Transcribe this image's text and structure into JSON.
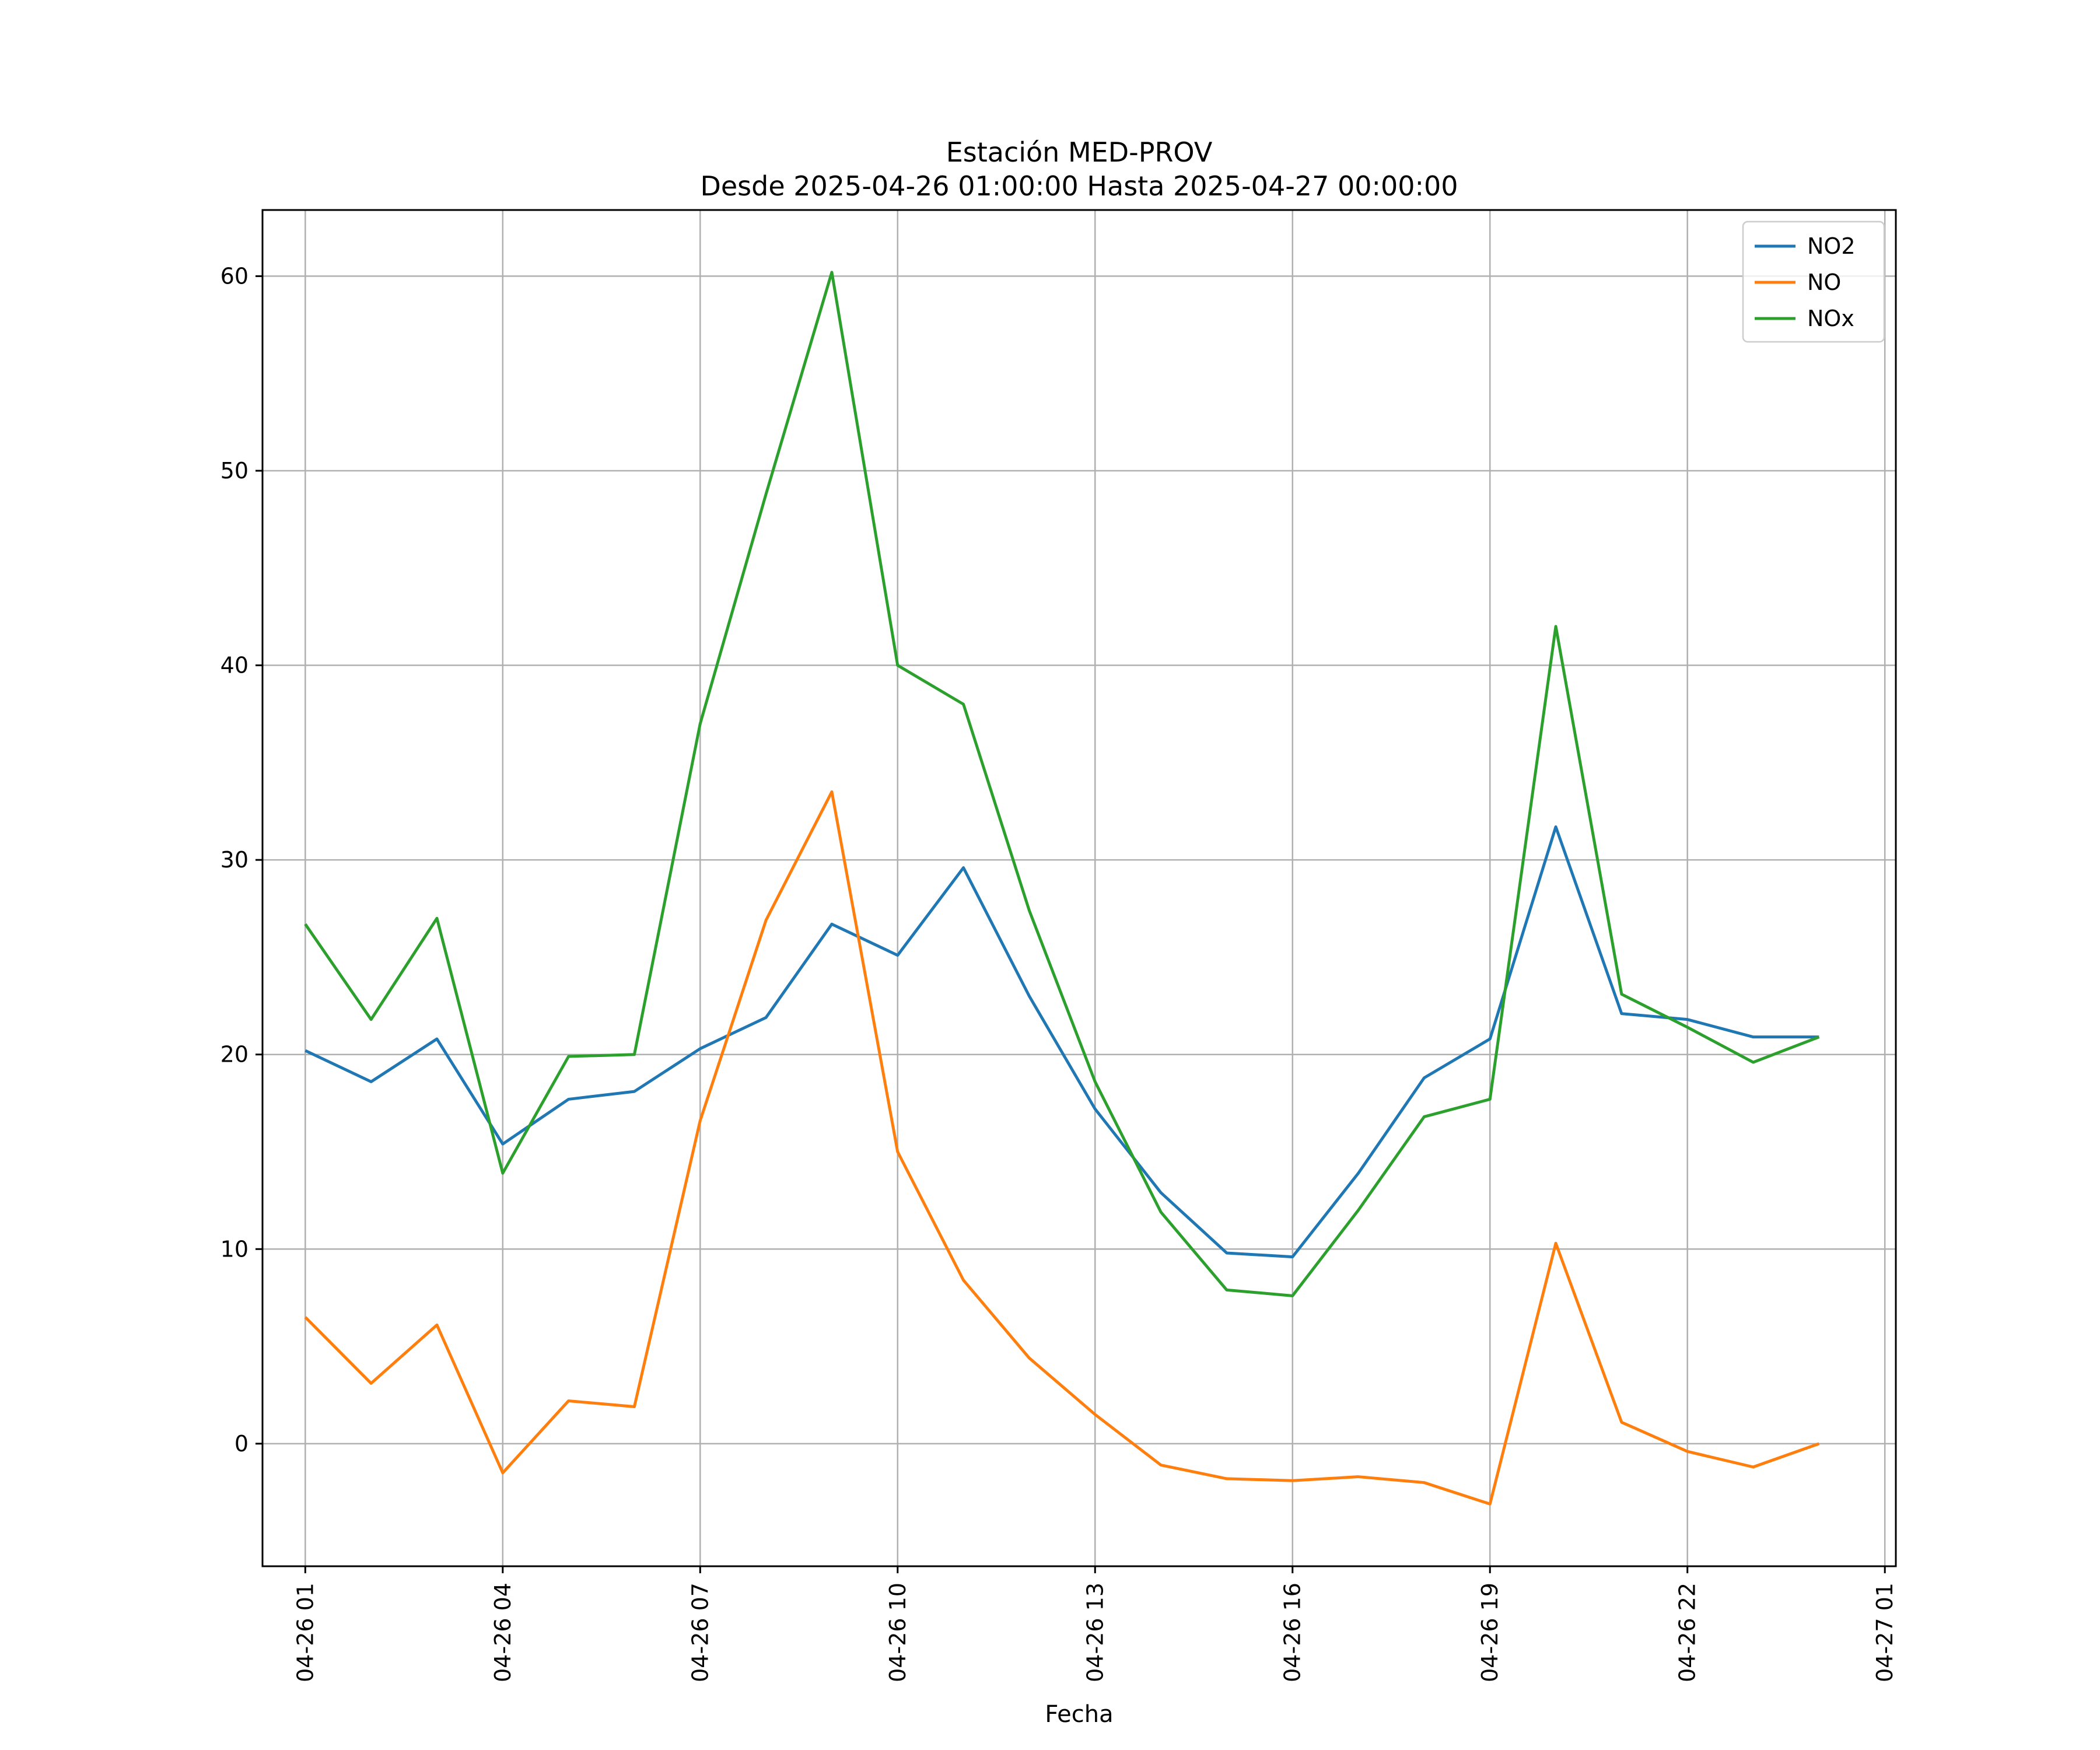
{
  "chart_data": {
    "type": "line",
    "title": "Estación MED-PROV",
    "subtitle": "Desde 2025-04-26 01:00:00 Hasta 2025-04-27 00:00:00",
    "xlabel": "Fecha",
    "ylabel": "",
    "x": [
      "04-26 01",
      "04-26 02",
      "04-26 03",
      "04-26 04",
      "04-26 05",
      "04-26 06",
      "04-26 07",
      "04-26 08",
      "04-26 09",
      "04-26 10",
      "04-26 11",
      "04-26 12",
      "04-26 13",
      "04-26 14",
      "04-26 15",
      "04-26 16",
      "04-26 17",
      "04-26 18",
      "04-26 19",
      "04-26 20",
      "04-26 21",
      "04-26 22",
      "04-26 23",
      "04-27 00"
    ],
    "x_ticks": [
      "04-26 01",
      "04-26 04",
      "04-26 07",
      "04-26 10",
      "04-26 13",
      "04-26 16",
      "04-26 19",
      "04-26 22",
      "04-27 01"
    ],
    "xlim": [
      "04-26 00:21",
      "04-27 01:10"
    ],
    "y_ticks": [
      0,
      10,
      20,
      30,
      40,
      50,
      60
    ],
    "ylim": [
      -6.3,
      63.4
    ],
    "grid": true,
    "legend_position": "top-right",
    "series": [
      {
        "name": "NO2",
        "color": "#1f77b4",
        "values": [
          20.2,
          18.6,
          20.8,
          15.4,
          17.7,
          18.1,
          20.3,
          21.9,
          26.7,
          25.1,
          29.6,
          23.0,
          17.2,
          12.9,
          9.8,
          9.6,
          13.9,
          18.8,
          20.8,
          31.7,
          22.1,
          21.8,
          20.9,
          20.9
        ]
      },
      {
        "name": "NO",
        "color": "#ff7f0e",
        "values": [
          6.5,
          3.1,
          6.1,
          -1.5,
          2.2,
          1.9,
          16.6,
          26.9,
          33.5,
          15.0,
          8.4,
          4.4,
          1.5,
          -1.1,
          -1.8,
          -1.9,
          -1.7,
          -2.0,
          -3.1,
          10.3,
          1.1,
          -0.4,
          -1.2,
          0.0
        ]
      },
      {
        "name": "NOx",
        "color": "#2ca02c",
        "values": [
          26.7,
          21.8,
          27.0,
          13.9,
          19.9,
          20.0,
          37.0,
          48.8,
          60.2,
          40.0,
          38.0,
          27.4,
          18.6,
          11.9,
          7.9,
          7.6,
          12.0,
          16.8,
          17.7,
          42.0,
          23.1,
          21.4,
          19.6,
          20.9
        ]
      }
    ]
  }
}
